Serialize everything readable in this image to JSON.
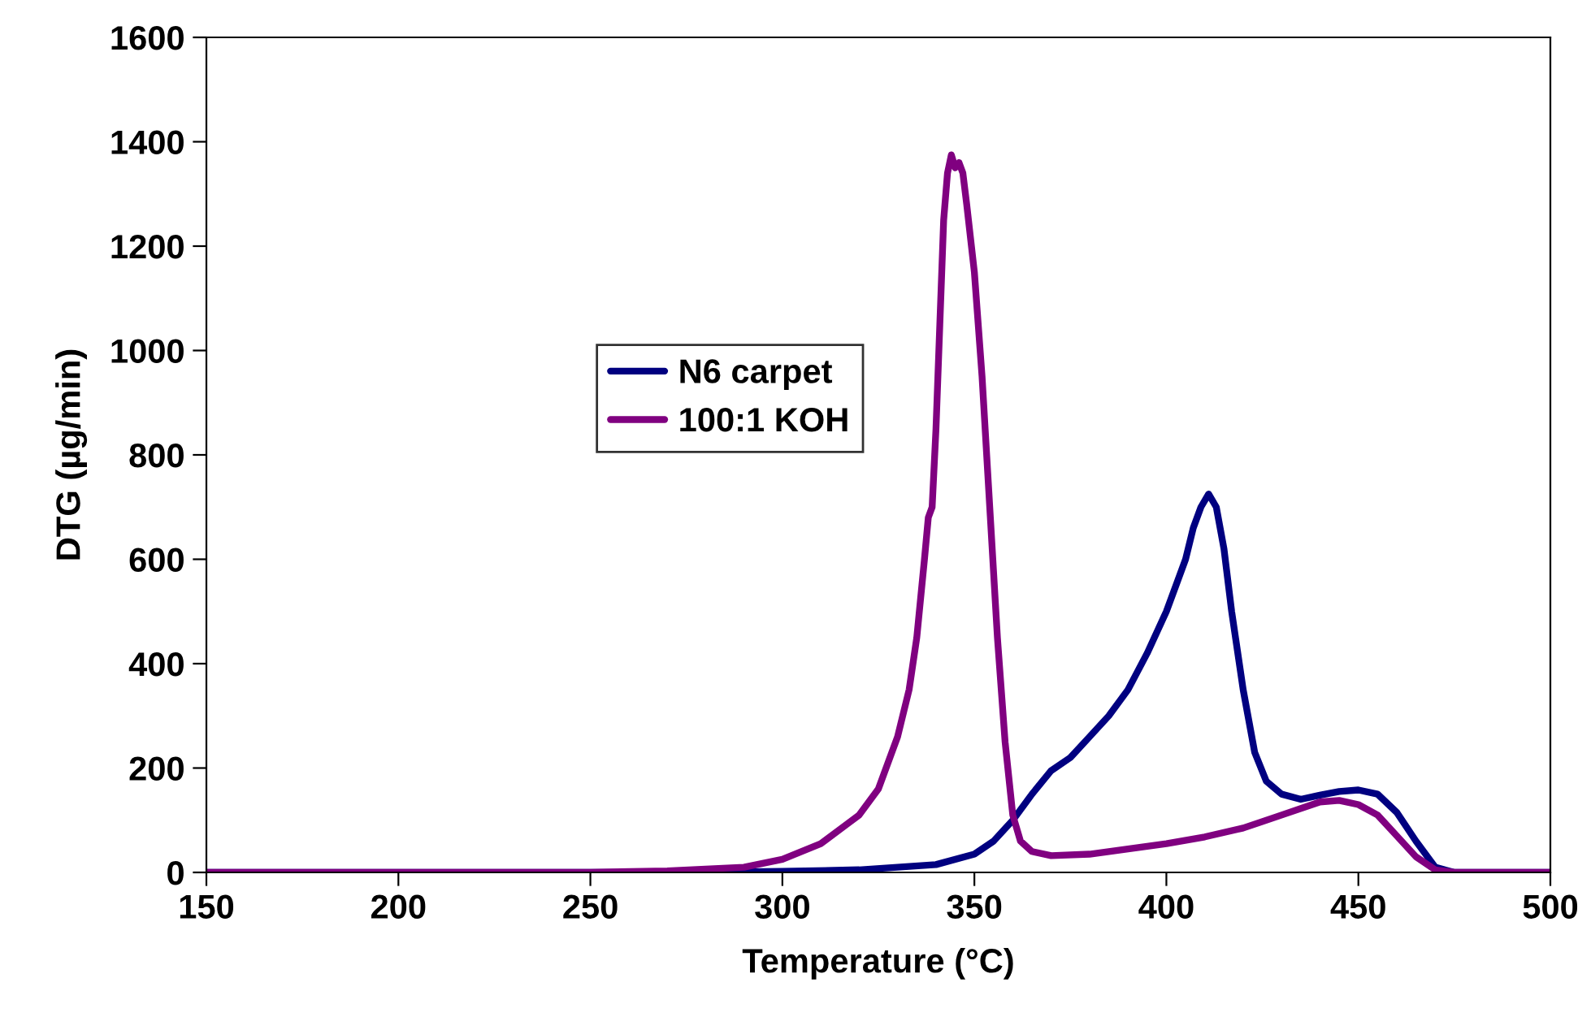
{
  "chart_data": {
    "type": "line",
    "xlabel": "Temperature (°C)",
    "ylabel": "DTG (µg/min)",
    "xlim": [
      150,
      500
    ],
    "xticks": [
      150,
      200,
      250,
      300,
      350,
      400,
      450,
      500
    ],
    "ylim": [
      0,
      1600
    ],
    "yticks": [
      0,
      200,
      400,
      600,
      800,
      1000,
      1200,
      1400,
      1600
    ],
    "grid": false,
    "legend": "top left",
    "marker": "none",
    "line_style": "solid",
    "series": [
      {
        "name": "N6 carpet",
        "color": "#000080",
        "x": [
          150,
          280,
          300,
          320,
          340,
          350,
          355,
          360,
          365,
          370,
          375,
          380,
          385,
          390,
          395,
          400,
          403,
          405,
          407,
          409,
          411,
          413,
          415,
          417,
          420,
          423,
          426,
          430,
          435,
          440,
          445,
          450,
          455,
          460,
          465,
          470,
          475,
          500
        ],
        "values": [
          0,
          0,
          2,
          5,
          15,
          35,
          60,
          100,
          150,
          195,
          220,
          260,
          300,
          350,
          420,
          500,
          560,
          600,
          660,
          700,
          725,
          700,
          620,
          500,
          350,
          230,
          175,
          150,
          140,
          148,
          155,
          158,
          150,
          115,
          60,
          10,
          0,
          0
        ]
      },
      {
        "name": "100:1 KOH",
        "color": "#800080",
        "x": [
          150,
          250,
          270,
          290,
          300,
          310,
          320,
          325,
          330,
          333,
          335,
          337,
          338,
          339,
          340,
          341,
          342,
          343,
          344,
          345,
          346,
          347,
          348,
          350,
          352,
          354,
          356,
          358,
          360,
          362,
          365,
          370,
          380,
          390,
          400,
          410,
          420,
          430,
          440,
          445,
          450,
          455,
          460,
          465,
          470,
          475,
          500
        ],
        "values": [
          0,
          0,
          3,
          10,
          25,
          55,
          110,
          160,
          260,
          350,
          450,
          600,
          680,
          700,
          850,
          1050,
          1250,
          1340,
          1375,
          1350,
          1360,
          1340,
          1280,
          1150,
          950,
          700,
          450,
          250,
          110,
          60,
          40,
          32,
          35,
          45,
          55,
          68,
          85,
          110,
          135,
          138,
          130,
          110,
          70,
          30,
          5,
          0,
          0
        ]
      }
    ]
  }
}
